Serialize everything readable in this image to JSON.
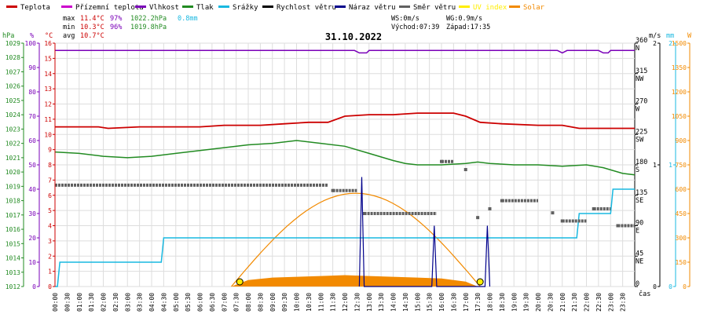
{
  "legend": [
    {
      "label": "Teplota",
      "color": "#cc0000"
    },
    {
      "label": "Přízemní teplota",
      "color": "#cc00cc"
    },
    {
      "label": "Vlhkost",
      "color": "#7a00b8"
    },
    {
      "label": "Tlak",
      "color": "#228b22"
    },
    {
      "label": "Srážky",
      "color": "#19b8e0"
    },
    {
      "label": "Rychlost větru",
      "color": "#000000"
    },
    {
      "label": "Náraz větru",
      "color": "#00008b"
    },
    {
      "label": "Směr větru",
      "color": "#606060"
    },
    {
      "label": "UV index",
      "color": "#ffee00"
    },
    {
      "label": "Solar",
      "color": "#f28a00"
    }
  ],
  "stats": {
    "max_label": "max",
    "max_temp": "11.4°C",
    "max_hum": "97%",
    "max_press": "1022.2hPa",
    "max_rain": "0.8mm",
    "min_label": "min",
    "min_temp": "10.3°C",
    "min_hum": "96%",
    "min_press": "1019.8hPa",
    "avg_label": "avg",
    "avg_temp": "10.7°C"
  },
  "info": {
    "ws": "WS:0m/s",
    "wg": "WG:0.9m/s",
    "sunrise": "Východ:07:39",
    "sunset": "Západ:17:35",
    "date": "31.10.2022"
  },
  "axes": {
    "hpa_unit": "hPa",
    "pct_unit": "%",
    "c_unit": "°C",
    "ms_unit": "m/s",
    "mm_unit": "mm",
    "w_unit": "W",
    "time_unit": "čas"
  },
  "chart_data": {
    "type": "line",
    "date": "31.10.2022",
    "x_ticks": [
      "00:00",
      "00:30",
      "01:00",
      "01:30",
      "02:00",
      "02:30",
      "03:00",
      "03:30",
      "04:00",
      "04:30",
      "05:00",
      "05:30",
      "06:00",
      "06:30",
      "07:00",
      "07:30",
      "08:00",
      "08:30",
      "09:00",
      "09:30",
      "10:00",
      "10:30",
      "11:00",
      "11:30",
      "12:00",
      "12:30",
      "13:00",
      "13:30",
      "14:00",
      "14:30",
      "15:00",
      "15:30",
      "16:00",
      "16:30",
      "17:00",
      "17:30",
      "18:00",
      "18:30",
      "19:00",
      "19:30",
      "20:00",
      "20:30",
      "21:00",
      "21:30",
      "22:00",
      "22:30",
      "23:00",
      "23:30"
    ],
    "axes_ranges": {
      "pressure_hPa": [
        1012,
        1029
      ],
      "humidity_pct": [
        0,
        100
      ],
      "temperature_C": [
        0,
        16
      ],
      "wind_direction_deg": [
        0,
        360
      ],
      "wind_speed_ms": [
        0,
        2
      ],
      "rain_mm": [
        0,
        2
      ],
      "solar_W": [
        0,
        1500
      ]
    },
    "y_ticks": {
      "pressure_hPa": [
        "1012",
        "1013",
        "1014",
        "1015",
        "1016",
        "1017",
        "1018",
        "1019",
        "1020",
        "1021",
        "1022",
        "1023",
        "1024",
        "1025",
        "1026",
        "1027",
        "1028",
        "1029"
      ],
      "humidity_pct": [
        "0",
        "10",
        "20",
        "30",
        "40",
        "50",
        "60",
        "70",
        "80",
        "90",
        "100"
      ],
      "temperature_C": [
        "0",
        "1",
        "2",
        "3",
        "4",
        "5",
        "6",
        "7",
        "8",
        "9",
        "10",
        "11",
        "12",
        "13",
        "14",
        "15",
        "16"
      ],
      "wind_direction": [
        {
          "deg": 0,
          "label": "0"
        },
        {
          "deg": 45,
          "label": "45",
          "dir": "NE"
        },
        {
          "deg": 90,
          "label": "90",
          "dir": "E"
        },
        {
          "deg": 135,
          "label": "135",
          "dir": "SE"
        },
        {
          "deg": 180,
          "label": "180",
          "dir": "S"
        },
        {
          "deg": 225,
          "label": "225",
          "dir": "SW"
        },
        {
          "deg": 270,
          "label": "270",
          "dir": "W"
        },
        {
          "deg": 315,
          "label": "315",
          "dir": "NW"
        },
        {
          "deg": 360,
          "label": "360",
          "dir": "N"
        }
      ],
      "wind_speed_ms": [
        "0",
        "1",
        "2"
      ],
      "rain_mm": [
        "0",
        "1",
        "2"
      ],
      "solar_W": [
        "0",
        "150",
        "300",
        "450",
        "600",
        "750",
        "900",
        "1050",
        "1200",
        "1350",
        "1500"
      ]
    },
    "series": [
      {
        "name": "Teplota",
        "axis": "temperature_C",
        "points": [
          [
            0,
            10.5
          ],
          [
            1.8,
            10.5
          ],
          [
            2.2,
            10.4
          ],
          [
            3.5,
            10.5
          ],
          [
            5,
            10.5
          ],
          [
            6,
            10.5
          ],
          [
            7,
            10.6
          ],
          [
            8.5,
            10.6
          ],
          [
            9.5,
            10.7
          ],
          [
            10.5,
            10.8
          ],
          [
            11.3,
            10.8
          ],
          [
            12,
            11.2
          ],
          [
            13,
            11.3
          ],
          [
            14,
            11.3
          ],
          [
            15,
            11.4
          ],
          [
            16.5,
            11.4
          ],
          [
            17,
            11.2
          ],
          [
            17.6,
            10.8
          ],
          [
            18.5,
            10.7
          ],
          [
            20,
            10.6
          ],
          [
            21,
            10.6
          ],
          [
            21.7,
            10.4
          ],
          [
            22.5,
            10.4
          ],
          [
            24,
            10.4
          ]
        ]
      },
      {
        "name": "Vlhkost",
        "axis": "humidity_pct",
        "points": [
          [
            0,
            97
          ],
          [
            12.4,
            97
          ],
          [
            12.6,
            96
          ],
          [
            12.9,
            96
          ],
          [
            13,
            97
          ],
          [
            20.8,
            97
          ],
          [
            21,
            96
          ],
          [
            21.2,
            97
          ],
          [
            22.5,
            97
          ],
          [
            22.7,
            96
          ],
          [
            22.9,
            96
          ],
          [
            23,
            97
          ],
          [
            24,
            97
          ]
        ]
      },
      {
        "name": "Tlak",
        "axis": "pressure_hPa",
        "points": [
          [
            0,
            1021.4
          ],
          [
            1,
            1021.3
          ],
          [
            2,
            1021.1
          ],
          [
            3,
            1021.0
          ],
          [
            4,
            1021.1
          ],
          [
            5,
            1021.3
          ],
          [
            6,
            1021.5
          ],
          [
            7,
            1021.7
          ],
          [
            8,
            1021.9
          ],
          [
            9,
            1022.0
          ],
          [
            10,
            1022.2
          ],
          [
            11,
            1022.0
          ],
          [
            12,
            1021.8
          ],
          [
            13,
            1021.3
          ],
          [
            14,
            1020.8
          ],
          [
            14.5,
            1020.6
          ],
          [
            15,
            1020.5
          ],
          [
            16,
            1020.5
          ],
          [
            17,
            1020.6
          ],
          [
            17.5,
            1020.7
          ],
          [
            18,
            1020.6
          ],
          [
            19,
            1020.5
          ],
          [
            20,
            1020.5
          ],
          [
            21,
            1020.4
          ],
          [
            22,
            1020.5
          ],
          [
            22.7,
            1020.3
          ],
          [
            23.5,
            1019.9
          ],
          [
            24,
            1019.8
          ]
        ]
      },
      {
        "name": "Srážky",
        "axis": "rain_mm",
        "points": [
          [
            0,
            0
          ],
          [
            0.1,
            0
          ],
          [
            0.2,
            0.2
          ],
          [
            4.4,
            0.2
          ],
          [
            4.5,
            0.4
          ],
          [
            21.6,
            0.4
          ],
          [
            21.7,
            0.6
          ],
          [
            23,
            0.6
          ],
          [
            23.1,
            0.8
          ],
          [
            24,
            0.8
          ]
        ]
      },
      {
        "name": "Náraz větru",
        "axis": "wind_speed_ms",
        "points": [
          [
            12.6,
            0
          ],
          [
            12.7,
            0.9
          ],
          [
            12.8,
            0
          ],
          [
            15.6,
            0
          ],
          [
            15.7,
            0.5
          ],
          [
            15.8,
            0
          ],
          [
            17.8,
            0
          ],
          [
            17.9,
            0.5
          ],
          [
            18,
            0
          ]
        ]
      },
      {
        "name": "Solar",
        "axis": "solar_W",
        "points": [
          [
            7.3,
            0
          ],
          [
            8,
            40
          ],
          [
            9,
            55
          ],
          [
            10,
            60
          ],
          [
            11,
            65
          ],
          [
            12,
            70
          ],
          [
            13,
            65
          ],
          [
            14,
            60
          ],
          [
            15,
            55
          ],
          [
            16,
            50
          ],
          [
            17,
            30
          ],
          [
            17.5,
            0
          ]
        ]
      },
      {
        "name": "Solar (max)",
        "axis": "solar_W",
        "points": [
          [
            7.3,
            0
          ],
          [
            8.5,
            230
          ],
          [
            10,
            450
          ],
          [
            11,
            540
          ],
          [
            12.2,
            570
          ],
          [
            13.5,
            520
          ],
          [
            15,
            380
          ],
          [
            16.5,
            170
          ],
          [
            17.6,
            0
          ]
        ]
      },
      {
        "name": "UV index",
        "axis": "solar_W",
        "points": [
          [
            7.65,
            0
          ],
          [
            17.6,
            0
          ]
        ]
      },
      {
        "name": "Směr větru",
        "axis": "wind_direction_deg",
        "points": [
          [
            0,
            150
          ],
          [
            11.3,
            150
          ],
          [
            11.5,
            142
          ],
          [
            12.5,
            142
          ],
          [
            12.8,
            108
          ],
          [
            15.8,
            108
          ],
          [
            16,
            185
          ],
          [
            16.5,
            185
          ],
          [
            17,
            173
          ],
          [
            17.5,
            102
          ],
          [
            18,
            115
          ],
          [
            18.5,
            127
          ],
          [
            20,
            127
          ],
          [
            20.6,
            109
          ],
          [
            21,
            97
          ],
          [
            22,
            97
          ],
          [
            22.3,
            115
          ],
          [
            23,
            115
          ],
          [
            23.3,
            90
          ],
          [
            24,
            90
          ]
        ]
      }
    ]
  }
}
